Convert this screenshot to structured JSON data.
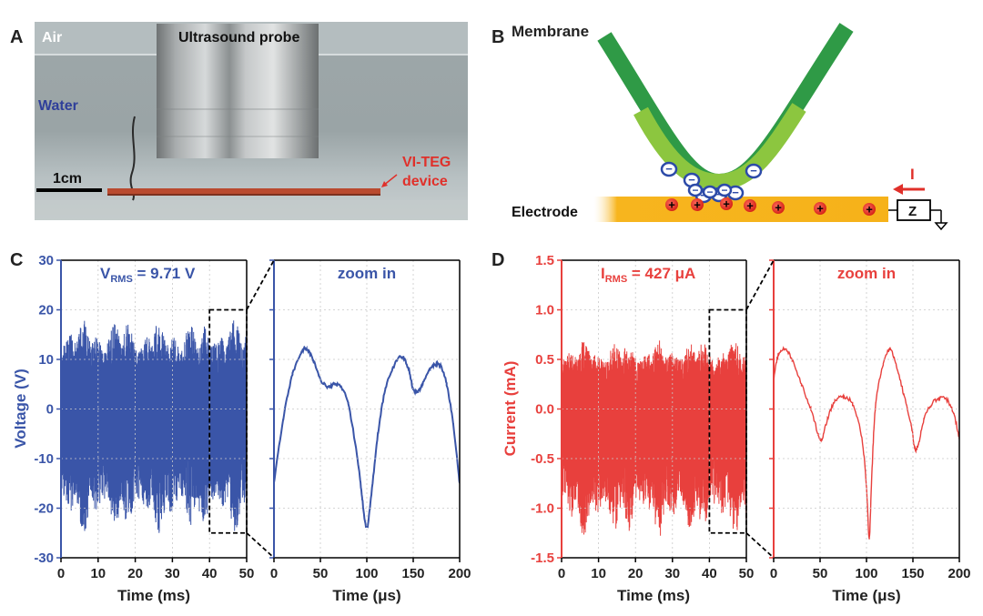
{
  "panels": {
    "A": {
      "letter": "A",
      "labels": {
        "air": "Air",
        "probe": "Ultrasound probe",
        "water": "Water",
        "scale": "1cm",
        "device_line1": "VI-TEG",
        "device_line2": "device"
      }
    },
    "B": {
      "letter": "B",
      "labels": {
        "membrane": "Membrane",
        "electrode": "Electrode",
        "current": "I",
        "impedance": "Z"
      },
      "minus_symbol": "−",
      "plus_symbol": "+"
    },
    "C": {
      "letter": "C"
    },
    "D": {
      "letter": "D"
    }
  },
  "colors": {
    "blue": "#3a55a8",
    "red": "#e8403d",
    "membrane_dark": "#2f9a46",
    "membrane_light": "#8cc63f",
    "electrode": "#f7b51e"
  },
  "chart_data": [
    {
      "id": "C-left",
      "type": "line",
      "xlabel": "Time (ms)",
      "ylabel": "Voltage (V)",
      "xlim": [
        0,
        50
      ],
      "ylim": [
        -30,
        30
      ],
      "xticks": [
        "0",
        "10",
        "20",
        "30",
        "40",
        "50"
      ],
      "yticks": [
        "-30",
        "-20",
        "-10",
        "0",
        "10",
        "20",
        "30"
      ],
      "annotation": {
        "main": "V",
        "sub": "RMS",
        "rest": " = 9.71 V"
      },
      "rms": 9.71,
      "unit": "V",
      "envelope": {
        "positive_peak_approx": 18,
        "negative_peak_approx": -25
      },
      "zoom_box_x": [
        40,
        50
      ],
      "zoom_box_y": [
        -25,
        20
      ]
    },
    {
      "id": "C-right",
      "type": "line",
      "title": "zoom in",
      "xlabel": "Time (μs)",
      "xlim": [
        0,
        200
      ],
      "ylim": [
        -30,
        30
      ],
      "xticks": [
        "0",
        "50",
        "100",
        "150",
        "200"
      ],
      "series": [
        {
          "name": "Voltage",
          "x": [
            0,
            10,
            20,
            30,
            35,
            42,
            50,
            58,
            65,
            72,
            80,
            90,
            95,
            100,
            105,
            112,
            120,
            130,
            138,
            145,
            150,
            155,
            160,
            168,
            175,
            180,
            186,
            193,
            200
          ],
          "y": [
            -15,
            -2,
            7,
            11.5,
            12,
            10,
            6,
            4.5,
            5,
            4.5,
            1,
            -10,
            -18,
            -24,
            -17,
            -5,
            4,
            9,
            10.5,
            8,
            4,
            3.5,
            5,
            8,
            9,
            8.5,
            5,
            -3,
            -15
          ]
        }
      ]
    },
    {
      "id": "D-left",
      "type": "line",
      "xlabel": "Time (ms)",
      "ylabel": "Current (mA)",
      "xlim": [
        0,
        50
      ],
      "ylim": [
        -1.5,
        1.5
      ],
      "xticks": [
        "0",
        "10",
        "20",
        "30",
        "40",
        "50"
      ],
      "yticks": [
        "-1.5",
        "-1.0",
        "-0.5",
        "0.0",
        "0.5",
        "1.0",
        "1.5"
      ],
      "annotation": {
        "main": "I",
        "sub": "RMS",
        "rest": " = 427 μA"
      },
      "rms": 427,
      "unit": "μA",
      "envelope": {
        "positive_peak_approx": 0.7,
        "negative_peak_approx": -1.3
      },
      "zoom_box_x": [
        40,
        50
      ],
      "zoom_box_y": [
        -1.25,
        1.0
      ]
    },
    {
      "id": "D-right",
      "type": "line",
      "title": "zoom in",
      "xlabel": "Time (μs)",
      "xlim": [
        0,
        200
      ],
      "ylim": [
        -1.5,
        1.5
      ],
      "xticks": [
        "0",
        "50",
        "100",
        "150",
        "200"
      ],
      "series": [
        {
          "name": "Current",
          "x": [
            0,
            5,
            12,
            20,
            30,
            40,
            48,
            52,
            58,
            66,
            75,
            85,
            95,
            100,
            103,
            106,
            110,
            118,
            125,
            132,
            140,
            148,
            152,
            156,
            162,
            170,
            178,
            186,
            194,
            200
          ],
          "y": [
            0.3,
            0.55,
            0.6,
            0.5,
            0.25,
            0,
            -0.25,
            -0.3,
            -0.1,
            0.08,
            0.12,
            0.05,
            -0.3,
            -0.8,
            -1.3,
            -0.6,
            0.05,
            0.45,
            0.6,
            0.45,
            0.15,
            -0.15,
            -0.4,
            -0.35,
            -0.1,
            0.05,
            0.1,
            0.1,
            -0.05,
            -0.3
          ]
        }
      ]
    }
  ]
}
